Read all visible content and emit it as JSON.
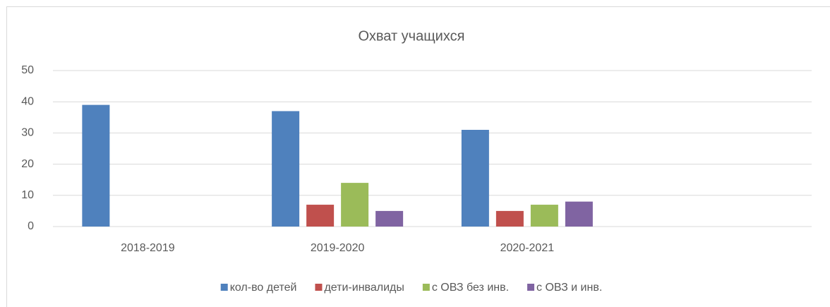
{
  "chart_data": {
    "type": "bar",
    "title": "Охват учащихся",
    "categories": [
      "2018-2019",
      "2019-2020",
      "2020-2021",
      null
    ],
    "series": [
      {
        "name": "кол-во детей",
        "color": "#4f81bd",
        "values": [
          39,
          37,
          31,
          null
        ]
      },
      {
        "name": "дети-инвалиды",
        "color": "#c0504d",
        "values": [
          null,
          7,
          5,
          null
        ]
      },
      {
        "name": "с ОВЗ без инв.",
        "color": "#9bbb59",
        "values": [
          null,
          14,
          7,
          null
        ]
      },
      {
        "name": "с ОВЗ и инв.",
        "color": "#8064a2",
        "values": [
          null,
          5,
          8,
          null
        ]
      }
    ],
    "ylim": [
      0,
      50
    ],
    "yticks": [
      0,
      10,
      20,
      30,
      40,
      50
    ],
    "grid": true,
    "legend": "bottom"
  }
}
